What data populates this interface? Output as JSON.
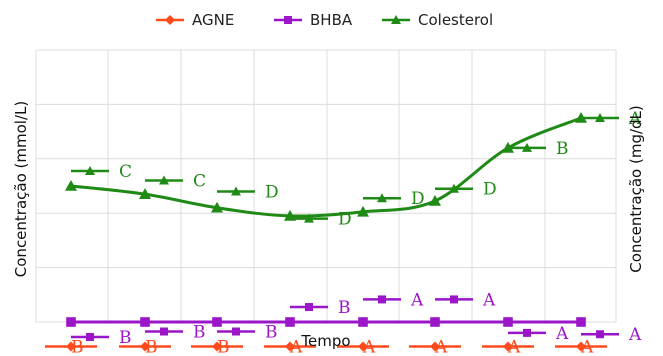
{
  "chart_data": {
    "type": "line",
    "xlabel": "Tempo",
    "ylabel_left": "Concentração (mmol/L)",
    "ylabel_right": "Concentração (mg/dL)",
    "grid": true,
    "tick_labels_shown": false,
    "legend_position": "top-center",
    "x": [
      1,
      2,
      3,
      4,
      5,
      6,
      7,
      8
    ],
    "ylim": [
      0,
      10
    ],
    "series": [
      {
        "name": "AGNE",
        "color": "#ff4a1c",
        "marker": "diamond",
        "values": [
          -0.9,
          -0.9,
          -0.9,
          -0.9,
          -0.9,
          -0.9,
          -0.9,
          -0.9
        ],
        "letters": [
          "B",
          "B",
          "B",
          "A",
          "A",
          "A",
          "A",
          "A"
        ]
      },
      {
        "name": "BHBA",
        "color": "#9a16c8",
        "marker": "square",
        "values": [
          0.0,
          0.0,
          0.0,
          0.0,
          0.0,
          0.0,
          0.0,
          0.0
        ],
        "letters": [
          "B",
          "B",
          "B",
          "B",
          "A",
          "A",
          "A",
          "A"
        ],
        "letter_points": [
          -0.55,
          -0.35,
          -0.35,
          0.55,
          0.83,
          0.83,
          -0.4,
          -0.45
        ]
      },
      {
        "name": "Colesterol",
        "color": "#1f8a16",
        "marker": "triangle",
        "values": [
          5.0,
          4.7,
          4.2,
          3.9,
          4.05,
          4.45,
          6.4,
          7.5
        ],
        "letters": [
          "C",
          "C",
          "D",
          "D",
          "D",
          "D",
          "B",
          "A"
        ],
        "letter_points": [
          5.55,
          5.2,
          4.8,
          3.8,
          4.55,
          4.9,
          6.4,
          7.5
        ]
      }
    ]
  }
}
